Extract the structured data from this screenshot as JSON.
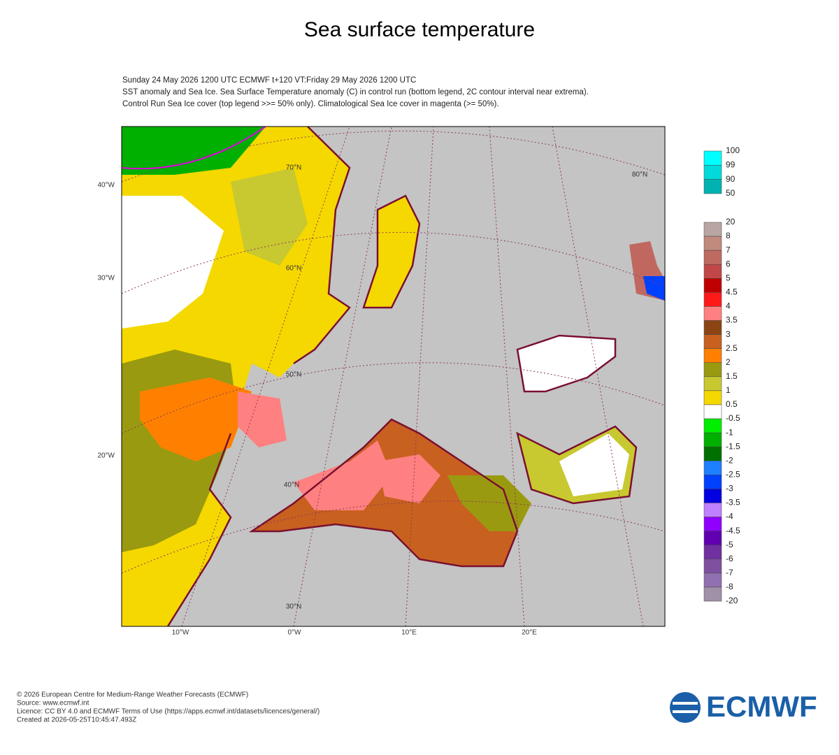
{
  "header": {
    "title": "Sea surface temperature",
    "lines": [
      "Sunday 24 May 2026 1200 UTC  ECMWF  t+120  VT:Friday 29 May 2026 1200 UTC",
      "SST anomaly and Sea Ice. Sea Surface Temperature anomaly (C) in control run (bottom legend, 2C contour interval near extrema).",
      "Control Run Sea Ice cover (top legend >>= 50% only). Climatological Sea Ice cover in magenta (>= 50%)."
    ]
  },
  "map": {
    "left_labels": [
      "40°W",
      "30°W",
      "20°W"
    ],
    "bottom_labels": [
      "10°W",
      "0°W",
      "10°E",
      "20°E"
    ],
    "lat_labels": [
      "70°N",
      "60°N",
      "50°N",
      "40°N",
      "30°N",
      "80°N"
    ]
  },
  "legend_top": {
    "labels": [
      "100",
      "99",
      "90",
      "50"
    ],
    "colors": [
      "#00ffff",
      "#00dada",
      "#00b2b2"
    ]
  },
  "legend_bottom": {
    "labels": [
      "20",
      "8",
      "7",
      "6",
      "5",
      "4.5",
      "4",
      "3.5",
      "3",
      "2.5",
      "2",
      "1.5",
      "1",
      "0.5",
      "-0.5",
      "-1",
      "-1.5",
      "-2",
      "-2.5",
      "-3",
      "-3.5",
      "-4",
      "-4.5",
      "-5",
      "-6",
      "-7",
      "-8",
      "-20"
    ],
    "colors": [
      "#b9a6a2",
      "#c08a7c",
      "#bf6a60",
      "#c04848",
      "#c00000",
      "#ff1a1a",
      "#ff8080",
      "#8b4513",
      "#c86020",
      "#ff8000",
      "#9a9a10",
      "#c8c830",
      "#f5d800",
      "#ffffff",
      "#00ee00",
      "#00b000",
      "#007000",
      "#1e80ff",
      "#0040ff",
      "#0000e0",
      "#c080ff",
      "#9000ff",
      "#6000b0",
      "#7030a0",
      "#8050a0",
      "#9070b0",
      "#a090a8"
    ]
  },
  "footer": {
    "lines": [
      "© 2026 European Centre for Medium-Range Weather Forecasts (ECMWF)",
      "Source: www.ecmwf.int",
      "Licence: CC BY 4.0 and ECMWF Terms of Use (https://apps.ecmwf.int/datasets/licences/general/)",
      "Created at 2026-05-25T10:45:47.493Z"
    ],
    "logo": "ECMWF"
  }
}
